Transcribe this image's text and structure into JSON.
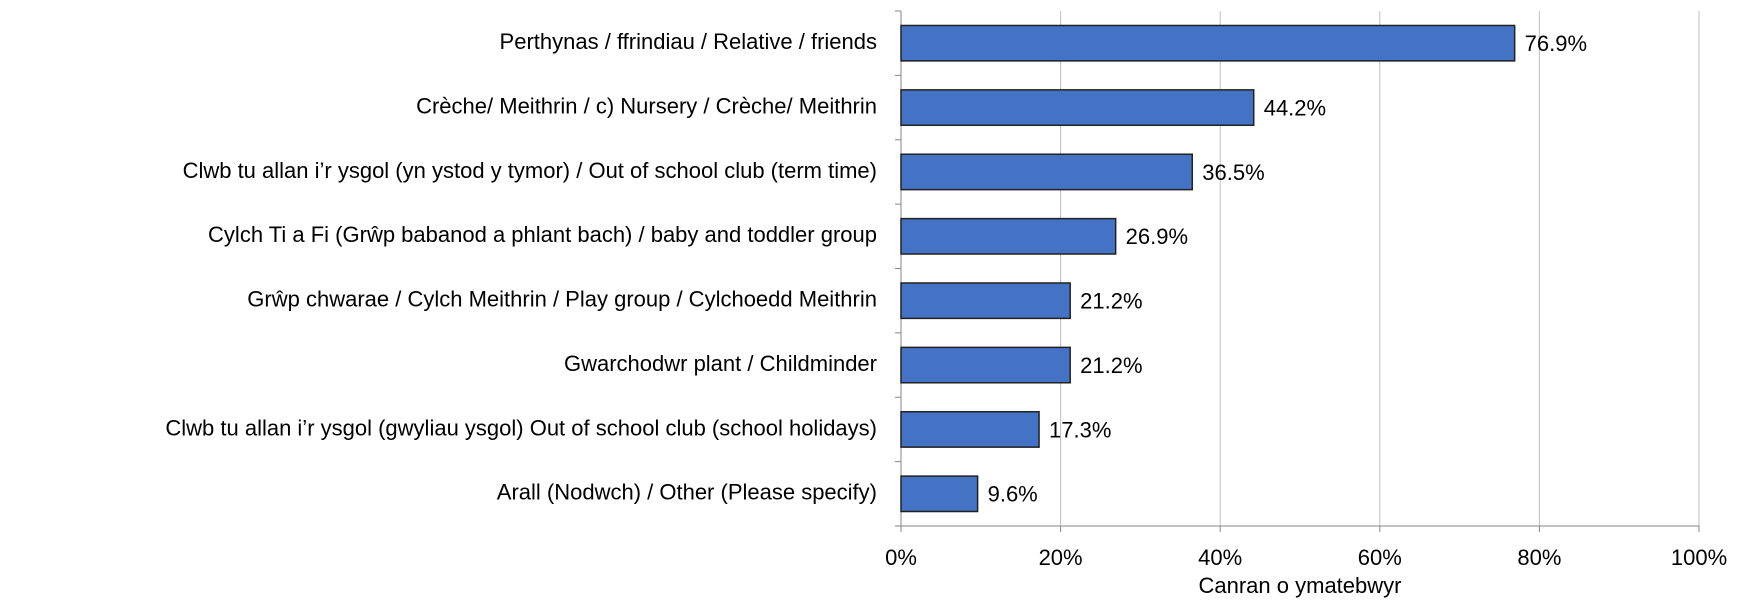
{
  "chart_data": {
    "type": "bar",
    "orientation": "horizontal",
    "categories": [
      "Perthynas / ffrindiau / Relative / friends",
      "Crèche/ Meithrin / c) Nursery / Crèche/ Meithrin",
      "Clwb tu allan i’r ysgol (yn ystod y tymor) /  Out of school club (term time)",
      "Cylch Ti a Fi (Grŵp babanod a phlant bach) / baby and toddler group",
      "Grŵp chwarae / Cylch Meithrin / Play group / Cylchoedd Meithrin",
      "Gwarchodwr plant / Childminder",
      "Clwb tu allan i’r ysgol (gwyliau ysgol) Out of school club (school holidays)",
      "Arall (Nodwch) / Other (Please specify)"
    ],
    "values": [
      76.9,
      44.2,
      36.5,
      26.9,
      21.2,
      21.2,
      17.3,
      9.6
    ],
    "value_labels": [
      "76.9%",
      "44.2%",
      "36.5%",
      "26.9%",
      "21.2%",
      "21.2%",
      "17.3%",
      "9.6%"
    ],
    "color": "#4472c4",
    "xlabel": "Canran o ymatebwyr",
    "xlim": [
      0,
      100
    ],
    "xticks": [
      {
        "value": 0,
        "label": "0%"
      },
      {
        "value": 20,
        "label": "20%"
      },
      {
        "value": 40,
        "label": "40%"
      },
      {
        "value": 60,
        "label": "60%"
      },
      {
        "value": 80,
        "label": "80%"
      },
      {
        "value": 100,
        "label": "100%"
      }
    ],
    "grid": true
  }
}
